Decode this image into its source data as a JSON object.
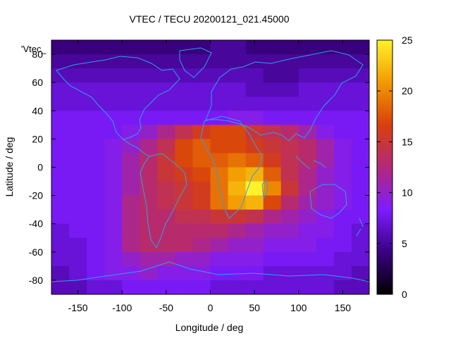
{
  "chart_data": {
    "type": "heatmap",
    "title": "VTEC / TECU 20200121_021.45000",
    "xlabel": "Longitude / deg",
    "ylabel": "Latitude / deg",
    "xlim": [
      -180,
      180
    ],
    "ylim": [
      -90,
      90
    ],
    "xticks": [
      -150,
      -100,
      -50,
      0,
      50,
      100,
      150
    ],
    "yticks": [
      -80,
      -60,
      -40,
      -20,
      0,
      20,
      40,
      60,
      80
    ],
    "series_label": "'Vtec_",
    "colorbar": {
      "range": [
        0,
        25
      ],
      "ticks": [
        0,
        5,
        10,
        15,
        20,
        25
      ],
      "colors": [
        "#000000",
        "#3a0082",
        "#7e1cff",
        "#b3287a",
        "#d8400c",
        "#f39a00",
        "#fff22a"
      ]
    },
    "grid": {
      "rows": 18,
      "cols": 18,
      "lat_centers": [
        85,
        75,
        65,
        55,
        45,
        35,
        25,
        15,
        5,
        -5,
        -15,
        -25,
        -35,
        -45,
        -55,
        -65,
        -75,
        -85
      ],
      "lon_centers": [
        -170,
        -150,
        -130,
        -110,
        -90,
        -70,
        -50,
        -30,
        -10,
        10,
        30,
        50,
        70,
        90,
        110,
        130,
        150,
        170
      ],
      "values": [
        [
          4,
          4,
          4,
          4,
          4,
          4,
          4,
          4,
          4,
          5,
          5,
          4,
          4,
          4,
          4,
          4,
          4,
          4
        ],
        [
          5,
          5,
          5,
          5,
          5,
          5,
          5,
          5,
          5,
          5,
          5,
          5,
          5,
          5,
          5,
          5,
          5,
          5
        ],
        [
          6,
          6,
          6,
          6,
          6,
          6,
          6,
          6,
          6,
          6,
          6,
          6,
          5,
          5,
          6,
          6,
          6,
          6
        ],
        [
          7,
          7,
          7,
          7,
          7,
          7,
          7,
          7,
          7,
          7,
          7,
          6,
          6,
          6,
          7,
          7,
          7,
          7
        ],
        [
          7,
          7,
          7,
          7,
          7,
          7,
          7,
          7,
          7,
          7,
          7,
          7,
          7,
          7,
          7,
          7,
          7,
          7
        ],
        [
          8,
          8,
          8,
          8,
          8,
          8,
          8,
          8,
          8,
          8,
          9,
          9,
          8,
          8,
          8,
          8,
          8,
          8
        ],
        [
          8,
          8,
          8,
          8,
          9,
          10,
          12,
          14,
          16,
          17,
          17,
          15,
          14,
          13,
          11,
          9,
          8,
          8
        ],
        [
          8,
          8,
          8,
          9,
          10,
          12,
          14,
          17,
          18,
          17,
          17,
          16,
          15,
          14,
          13,
          11,
          9,
          8
        ],
        [
          8,
          8,
          8,
          9,
          11,
          13,
          15,
          17,
          18,
          18,
          19,
          18,
          16,
          14,
          13,
          11,
          9,
          8
        ],
        [
          8,
          8,
          8,
          9,
          11,
          13,
          15,
          16,
          17,
          19,
          21,
          22,
          18,
          14,
          12,
          10,
          9,
          8
        ],
        [
          8,
          8,
          8,
          9,
          11,
          13,
          14,
          15,
          16,
          19,
          22,
          25,
          20,
          15,
          12,
          10,
          9,
          8
        ],
        [
          8,
          8,
          8,
          9,
          12,
          13,
          14,
          15,
          16,
          19,
          21,
          22,
          17,
          13,
          11,
          10,
          9,
          8
        ],
        [
          8,
          8,
          8,
          9,
          12,
          13,
          13,
          14,
          14,
          15,
          15,
          14,
          12,
          11,
          10,
          9,
          8,
          8
        ],
        [
          7,
          8,
          8,
          9,
          12,
          13,
          13,
          13,
          13,
          13,
          12,
          11,
          10,
          10,
          9,
          9,
          8,
          7
        ],
        [
          7,
          7,
          8,
          9,
          12,
          13,
          13,
          13,
          12,
          11,
          10,
          10,
          9,
          9,
          9,
          8,
          8,
          7
        ],
        [
          7,
          7,
          8,
          9,
          10,
          11,
          11,
          10,
          10,
          9,
          9,
          9,
          8,
          8,
          8,
          8,
          7,
          7
        ],
        [
          6,
          7,
          8,
          9,
          9,
          10,
          9,
          9,
          9,
          8,
          8,
          8,
          7,
          7,
          7,
          7,
          7,
          6
        ],
        [
          6,
          6,
          7,
          7,
          8,
          8,
          8,
          8,
          8,
          7,
          7,
          7,
          7,
          7,
          7,
          7,
          6,
          6
        ]
      ]
    }
  }
}
